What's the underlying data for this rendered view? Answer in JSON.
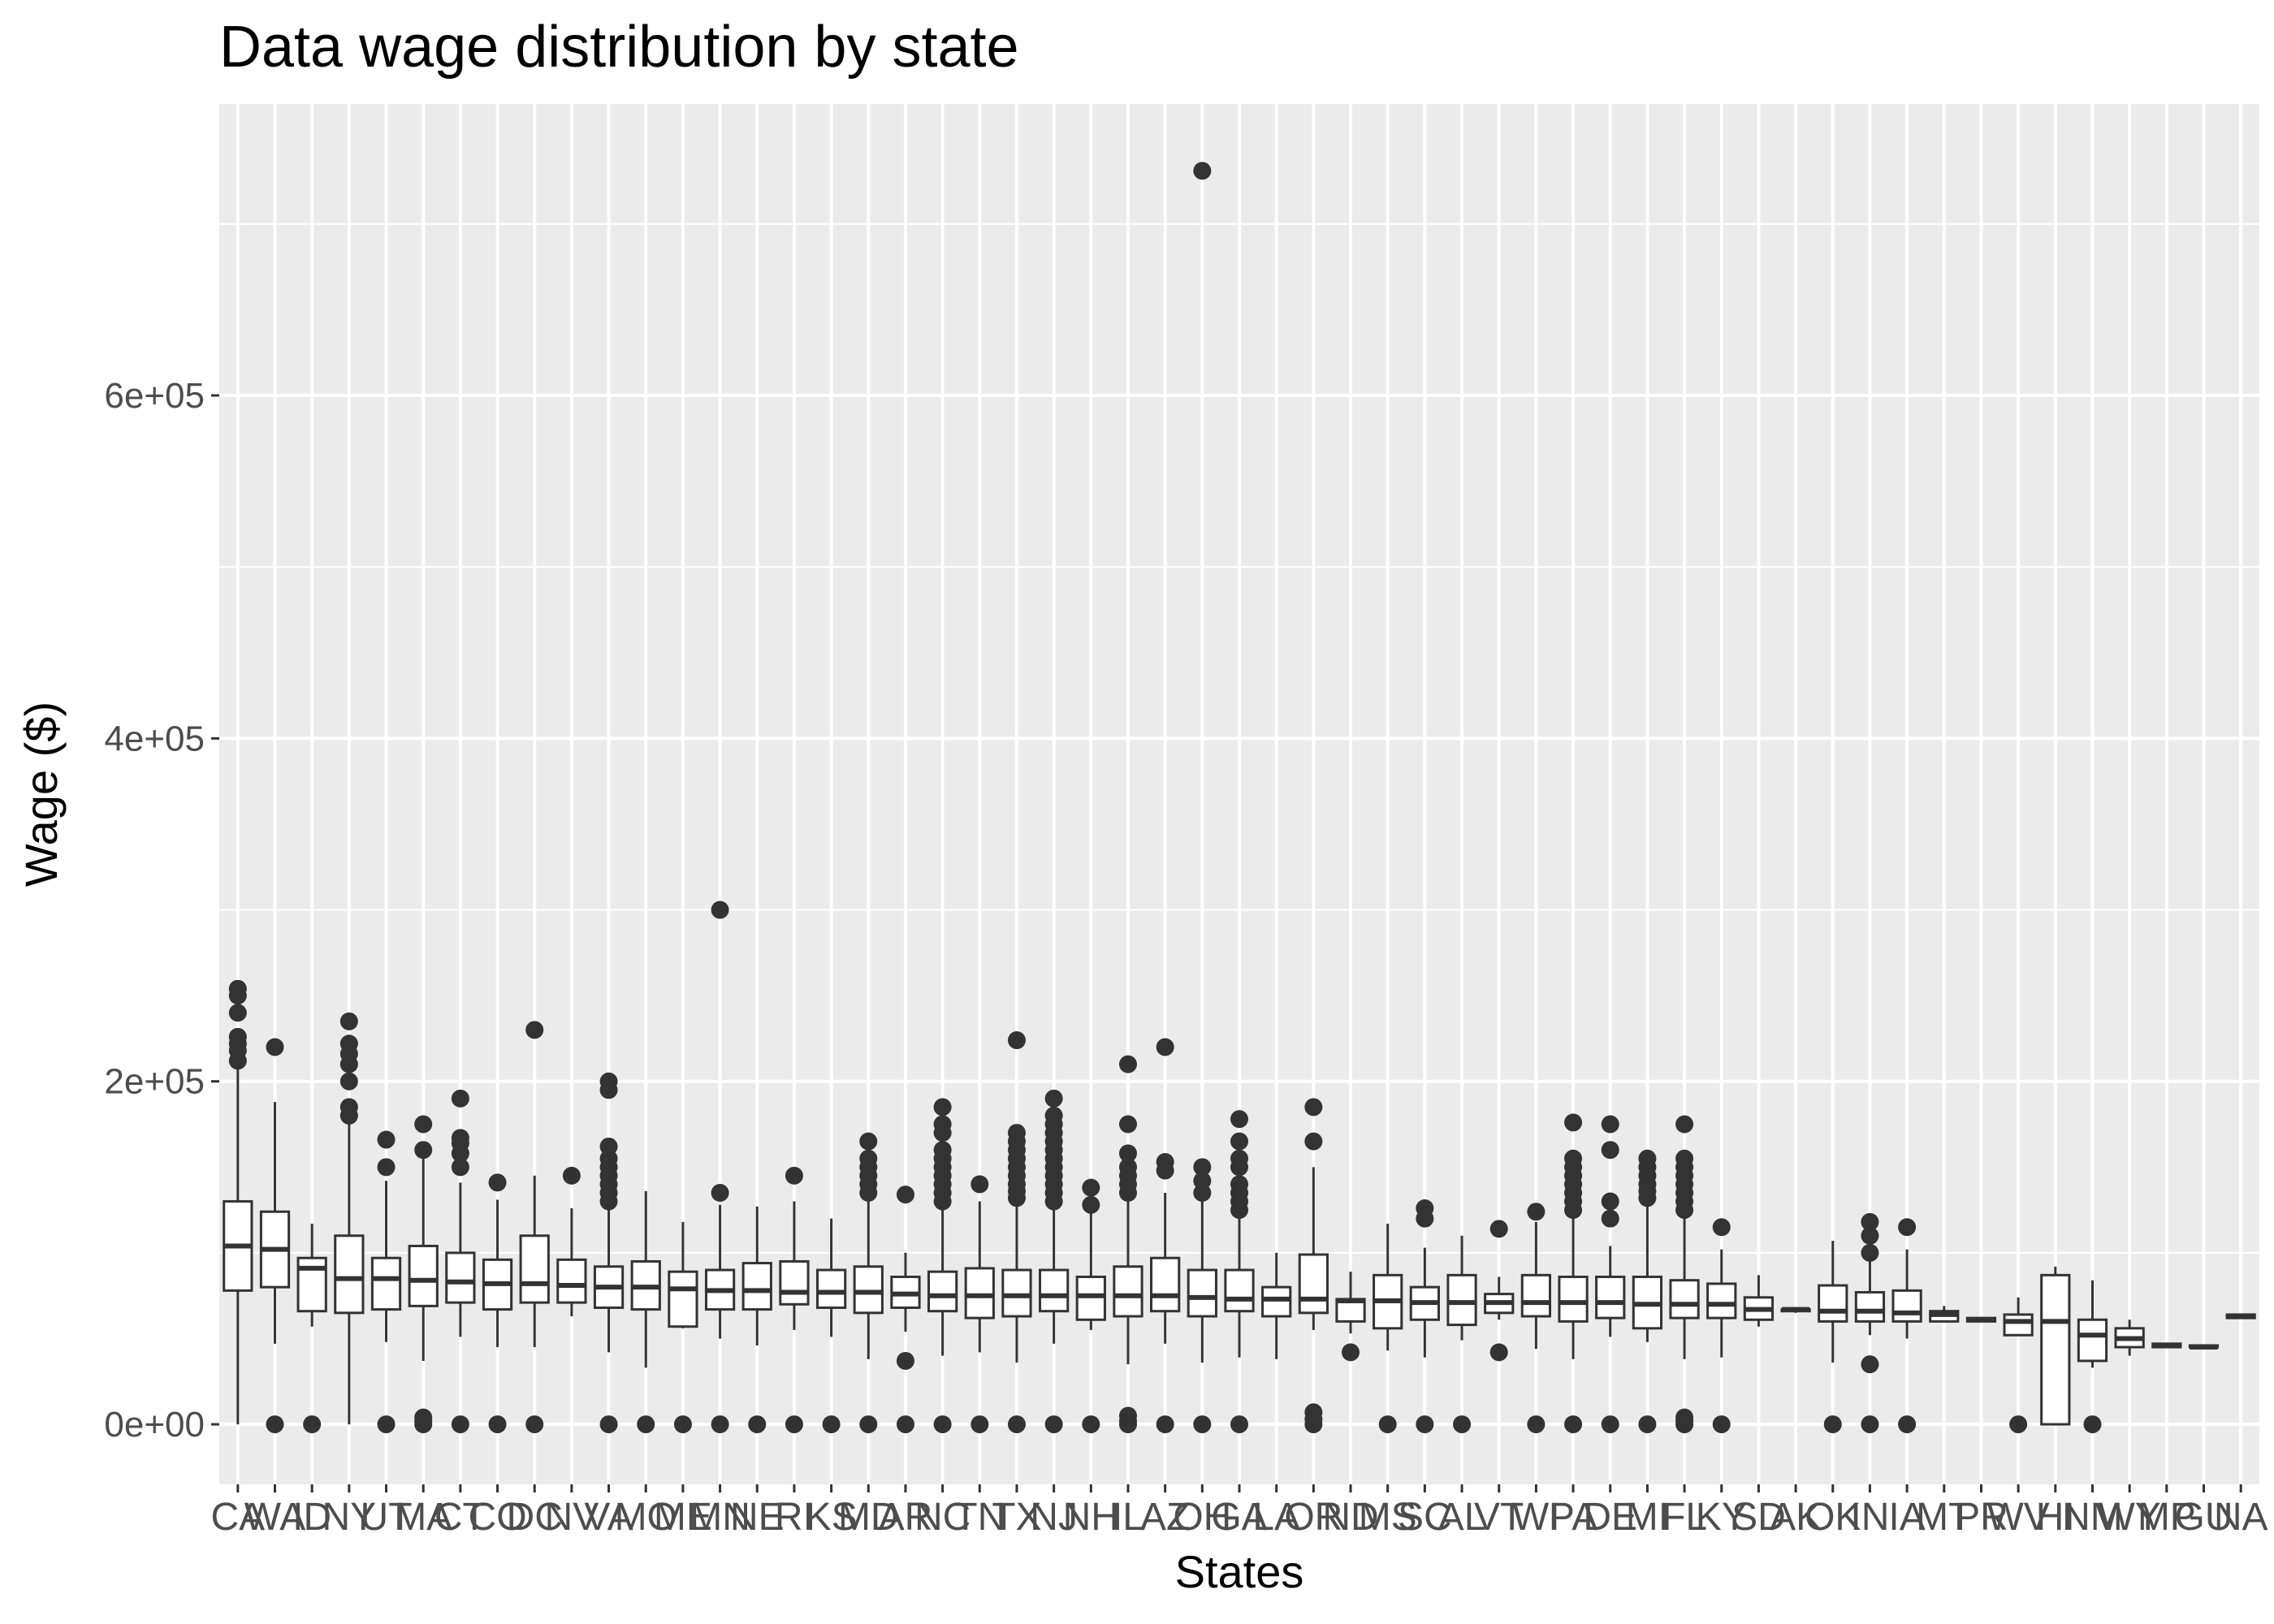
{
  "chart_data": {
    "type": "box",
    "title": "Data wage distribution by state",
    "xlabel": "States",
    "ylabel": "Wage ($)",
    "ylim": [
      -35000,
      770000
    ],
    "yticks": [
      0,
      200000,
      400000,
      600000
    ],
    "ytick_labels": [
      "0e+00",
      "2e+05",
      "4e+05",
      "6e+05"
    ],
    "grid": true,
    "panel_background": "#ebebeb",
    "box_stroke": "#333333",
    "categories": [
      "CA",
      "WA",
      "ID",
      "NY",
      "UT",
      "MA",
      "CT",
      "CO",
      "DC",
      "NV",
      "VA",
      "MO",
      "ME",
      "MN",
      "NE",
      "RI",
      "KS",
      "MD",
      "AR",
      "NC",
      "TN",
      "TX",
      "NJ",
      "NH",
      "IL",
      "AZ",
      "OH",
      "GA",
      "LA",
      "OR",
      "ND",
      "MS",
      "SC",
      "AL",
      "VT",
      "WI",
      "PA",
      "DE",
      "MI",
      "FL",
      "KY",
      "SD",
      "AK",
      "OK",
      "IN",
      "IA",
      "MT",
      "PR",
      "WV",
      "HI",
      "NM",
      "WY",
      "MP",
      "GU",
      "NA"
    ],
    "boxes": [
      {
        "state": "CA",
        "min": 0,
        "q1": 78000,
        "median": 104000,
        "q3": 130000,
        "max": 208000,
        "outliers": [
          212000,
          218000,
          222000,
          226000,
          240000,
          250000,
          254000
        ]
      },
      {
        "state": "WA",
        "min": 47000,
        "q1": 80000,
        "median": 102000,
        "q3": 124000,
        "max": 188000,
        "outliers": [
          0,
          220000
        ]
      },
      {
        "state": "ID",
        "min": 57000,
        "q1": 66000,
        "median": 91000,
        "q3": 97000,
        "max": 117000,
        "outliers": [
          0
        ]
      },
      {
        "state": "NY",
        "min": 0,
        "q1": 65000,
        "median": 85000,
        "q3": 110000,
        "max": 178000,
        "outliers": [
          180000,
          185000,
          200000,
          210000,
          216000,
          222000,
          235000
        ]
      },
      {
        "state": "UT",
        "min": 48000,
        "q1": 67000,
        "median": 85000,
        "q3": 97000,
        "max": 142000,
        "outliers": [
          0,
          150000,
          166000
        ]
      },
      {
        "state": "MA",
        "min": 37000,
        "q1": 69000,
        "median": 84000,
        "q3": 104000,
        "max": 155000,
        "outliers": [
          0,
          2000,
          4000,
          160000,
          175000
        ]
      },
      {
        "state": "CT",
        "min": 51000,
        "q1": 71000,
        "median": 83000,
        "q3": 100000,
        "max": 141000,
        "outliers": [
          0,
          150000,
          158000,
          164000,
          167000,
          190000
        ]
      },
      {
        "state": "CO",
        "min": 45000,
        "q1": 67000,
        "median": 82000,
        "q3": 96000,
        "max": 131000,
        "outliers": [
          0,
          141000
        ]
      },
      {
        "state": "DC",
        "min": 45000,
        "q1": 71000,
        "median": 82000,
        "q3": 110000,
        "max": 145000,
        "outliers": [
          0,
          230000
        ]
      },
      {
        "state": "NV",
        "min": 63000,
        "q1": 71000,
        "median": 81000,
        "q3": 96000,
        "max": 126000,
        "outliers": [
          145000
        ]
      },
      {
        "state": "VA",
        "min": 42000,
        "q1": 68000,
        "median": 80000,
        "q3": 92000,
        "max": 128000,
        "outliers": [
          0,
          130000,
          135000,
          140000,
          145000,
          150000,
          155000,
          162000,
          195000,
          200000
        ]
      },
      {
        "state": "MO",
        "min": 33000,
        "q1": 67000,
        "median": 80000,
        "q3": 95000,
        "max": 136000,
        "outliers": [
          0
        ]
      },
      {
        "state": "ME",
        "min": 56000,
        "q1": 57000,
        "median": 79000,
        "q3": 89000,
        "max": 118000,
        "outliers": [
          0
        ]
      },
      {
        "state": "MN",
        "min": 50000,
        "q1": 67000,
        "median": 78000,
        "q3": 90000,
        "max": 128000,
        "outliers": [
          0,
          135000,
          300000
        ]
      },
      {
        "state": "NE",
        "min": 46000,
        "q1": 67000,
        "median": 78000,
        "q3": 94000,
        "max": 127000,
        "outliers": [
          0
        ]
      },
      {
        "state": "RI",
        "min": 55000,
        "q1": 70000,
        "median": 77000,
        "q3": 95000,
        "max": 130000,
        "outliers": [
          0,
          145000
        ]
      },
      {
        "state": "KS",
        "min": 51000,
        "q1": 68000,
        "median": 77000,
        "q3": 90000,
        "max": 120000,
        "outliers": [
          0
        ]
      },
      {
        "state": "MD",
        "min": 38000,
        "q1": 65000,
        "median": 77000,
        "q3": 92000,
        "max": 130000,
        "outliers": [
          0,
          135000,
          140000,
          145000,
          150000,
          155000,
          165000
        ]
      },
      {
        "state": "AR",
        "min": 54000,
        "q1": 68000,
        "median": 76000,
        "q3": 86000,
        "max": 100000,
        "outliers": [
          0,
          37000,
          134000
        ]
      },
      {
        "state": "NC",
        "min": 40000,
        "q1": 66000,
        "median": 75000,
        "q3": 89000,
        "max": 127000,
        "outliers": [
          0,
          130000,
          135000,
          140000,
          145000,
          150000,
          155000,
          160000,
          170000,
          175000,
          185000
        ]
      },
      {
        "state": "TN",
        "min": 42000,
        "q1": 62000,
        "median": 75000,
        "q3": 91000,
        "max": 130000,
        "outliers": [
          0,
          140000
        ]
      },
      {
        "state": "TX",
        "min": 36000,
        "q1": 63000,
        "median": 75000,
        "q3": 90000,
        "max": 130000,
        "outliers": [
          0,
          132000,
          136000,
          140000,
          145000,
          150000,
          155000,
          160000,
          165000,
          170000,
          224000
        ]
      },
      {
        "state": "NJ",
        "min": 47000,
        "q1": 66000,
        "median": 75000,
        "q3": 90000,
        "max": 127000,
        "outliers": [
          0,
          130000,
          135000,
          140000,
          145000,
          150000,
          155000,
          160000,
          165000,
          170000,
          175000,
          180000,
          190000
        ]
      },
      {
        "state": "NH",
        "min": 55000,
        "q1": 61000,
        "median": 75000,
        "q3": 86000,
        "max": 125000,
        "outliers": [
          0,
          128000,
          138000
        ]
      },
      {
        "state": "IL",
        "min": 35000,
        "q1": 63000,
        "median": 75000,
        "q3": 92000,
        "max": 132000,
        "outliers": [
          0,
          2000,
          5000,
          135000,
          140000,
          145000,
          150000,
          158000,
          175000,
          210000
        ]
      },
      {
        "state": "AZ",
        "min": 47000,
        "q1": 66000,
        "median": 75000,
        "q3": 97000,
        "max": 135000,
        "outliers": [
          0,
          148000,
          153000,
          220000
        ]
      },
      {
        "state": "OH",
        "min": 36000,
        "q1": 63000,
        "median": 74000,
        "q3": 90000,
        "max": 130000,
        "outliers": [
          0,
          135000,
          142000,
          150000,
          731000
        ]
      },
      {
        "state": "GA",
        "min": 39000,
        "q1": 66000,
        "median": 73000,
        "q3": 90000,
        "max": 123000,
        "outliers": [
          0,
          125000,
          130000,
          135000,
          140000,
          150000,
          155000,
          165000,
          178000
        ]
      },
      {
        "state": "LA",
        "min": 38000,
        "q1": 63000,
        "median": 73000,
        "q3": 80000,
        "max": 100000,
        "outliers": []
      },
      {
        "state": "OR",
        "min": 55000,
        "q1": 65000,
        "median": 73000,
        "q3": 99000,
        "max": 150000,
        "outliers": [
          0,
          3000,
          7000,
          165000,
          185000
        ]
      },
      {
        "state": "ND",
        "min": 53000,
        "q1": 60000,
        "median": 72000,
        "q3": 73000,
        "max": 89000,
        "outliers": [
          42000
        ]
      },
      {
        "state": "MS",
        "min": 43000,
        "q1": 56000,
        "median": 72000,
        "q3": 87000,
        "max": 117000,
        "outliers": [
          0
        ]
      },
      {
        "state": "SC",
        "min": 39000,
        "q1": 61000,
        "median": 71000,
        "q3": 80000,
        "max": 103000,
        "outliers": [
          0,
          120000,
          126000
        ]
      },
      {
        "state": "AL",
        "min": 49000,
        "q1": 58000,
        "median": 71000,
        "q3": 87000,
        "max": 110000,
        "outliers": [
          0
        ]
      },
      {
        "state": "VT",
        "min": 61000,
        "q1": 65000,
        "median": 71000,
        "q3": 76000,
        "max": 86000,
        "outliers": [
          42000,
          114000
        ]
      },
      {
        "state": "WI",
        "min": 44000,
        "q1": 63000,
        "median": 71000,
        "q3": 87000,
        "max": 118000,
        "outliers": [
          0,
          124000
        ]
      },
      {
        "state": "PA",
        "min": 38000,
        "q1": 60000,
        "median": 71000,
        "q3": 86000,
        "max": 120000,
        "outliers": [
          0,
          125000,
          130000,
          135000,
          140000,
          145000,
          150000,
          155000,
          176000
        ]
      },
      {
        "state": "DE",
        "min": 51000,
        "q1": 62000,
        "median": 71000,
        "q3": 86000,
        "max": 104000,
        "outliers": [
          0,
          120000,
          130000,
          160000,
          175000
        ]
      },
      {
        "state": "MI",
        "min": 48000,
        "q1": 56000,
        "median": 70000,
        "q3": 86000,
        "max": 130000,
        "outliers": [
          0,
          132000,
          136000,
          140000,
          145000,
          150000,
          155000
        ]
      },
      {
        "state": "FL",
        "min": 38000,
        "q1": 62000,
        "median": 70000,
        "q3": 84000,
        "max": 120000,
        "outliers": [
          0,
          2000,
          4000,
          125000,
          130000,
          135000,
          140000,
          145000,
          150000,
          155000,
          175000
        ]
      },
      {
        "state": "KY",
        "min": 39000,
        "q1": 62000,
        "median": 70000,
        "q3": 82000,
        "max": 102000,
        "outliers": [
          0,
          115000
        ]
      },
      {
        "state": "SD",
        "min": 57000,
        "q1": 61000,
        "median": 67000,
        "q3": 74000,
        "max": 87000,
        "outliers": []
      },
      {
        "state": "AK",
        "min": 65000,
        "q1": 66000,
        "median": 67000,
        "q3": 67000,
        "max": 68000,
        "outliers": []
      },
      {
        "state": "OK",
        "min": 36000,
        "q1": 60000,
        "median": 66000,
        "q3": 81000,
        "max": 107000,
        "outliers": [
          0
        ]
      },
      {
        "state": "IN",
        "min": 52000,
        "q1": 60000,
        "median": 66000,
        "q3": 77000,
        "max": 96000,
        "outliers": [
          0,
          35000,
          100000,
          110000,
          118000
        ]
      },
      {
        "state": "IA",
        "min": 50000,
        "q1": 60000,
        "median": 65000,
        "q3": 78000,
        "max": 102000,
        "outliers": [
          0,
          115000
        ]
      },
      {
        "state": "MT",
        "min": 60000,
        "q1": 60000,
        "median": 64000,
        "q3": 66000,
        "max": 69000,
        "outliers": []
      },
      {
        "state": "PR",
        "min": 60000,
        "q1": 60000,
        "median": 61000,
        "q3": 62000,
        "max": 62000,
        "outliers": []
      },
      {
        "state": "WV",
        "min": 52000,
        "q1": 52000,
        "median": 60000,
        "q3": 64000,
        "max": 74000,
        "outliers": [
          0
        ]
      },
      {
        "state": "HI",
        "min": 0,
        "q1": 0,
        "median": 60000,
        "q3": 87000,
        "max": 92000,
        "outliers": []
      },
      {
        "state": "NM",
        "min": 33000,
        "q1": 37000,
        "median": 52000,
        "q3": 61000,
        "max": 84000,
        "outliers": [
          0
        ]
      },
      {
        "state": "WY",
        "min": 40000,
        "q1": 45000,
        "median": 50000,
        "q3": 56000,
        "max": 61000,
        "outliers": []
      },
      {
        "state": "MP",
        "min": 45000,
        "q1": 45000,
        "median": 46000,
        "q3": 47000,
        "max": 47000,
        "outliers": []
      },
      {
        "state": "GU",
        "min": 45000,
        "q1": 45000,
        "median": 45000,
        "q3": 46000,
        "max": 46000,
        "outliers": []
      },
      {
        "state": "NA",
        "min": 62000,
        "q1": 62000,
        "median": 63000,
        "q3": 64000,
        "max": 64000,
        "outliers": []
      }
    ]
  }
}
